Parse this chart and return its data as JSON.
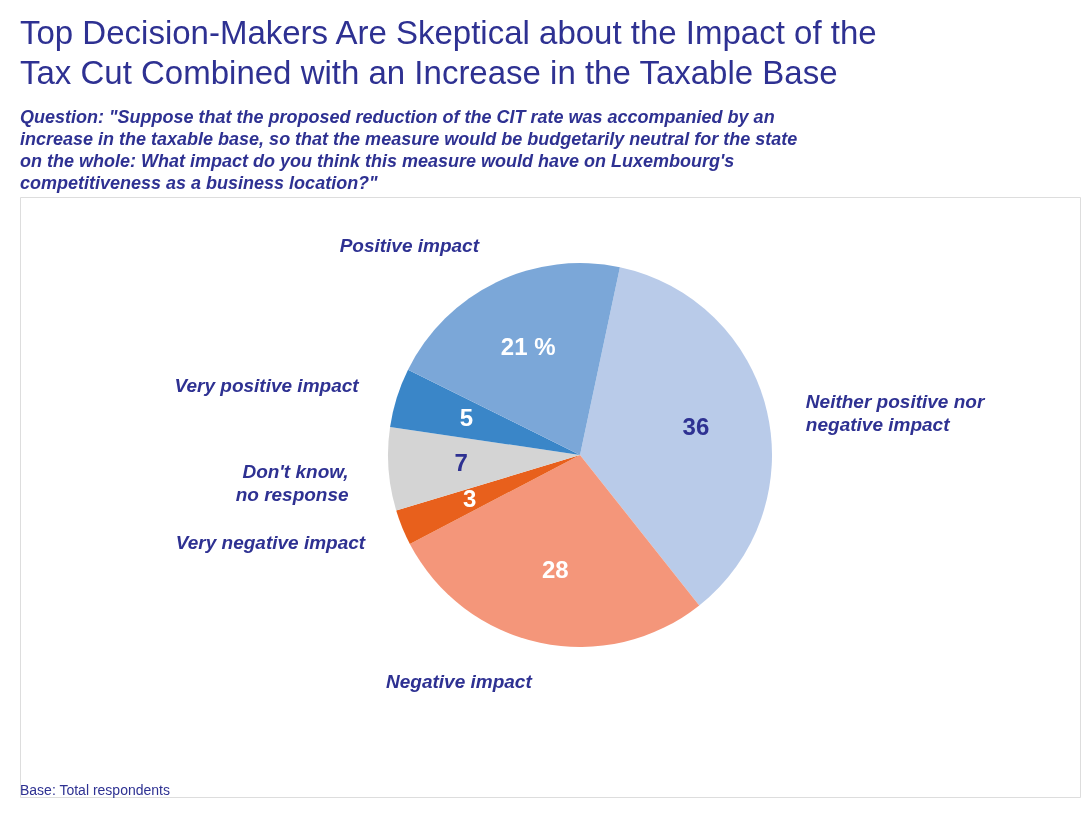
{
  "chart_data": {
    "type": "pie",
    "title": "Top Decision-Makers Are Skeptical about the Impact of the Tax Cut Combined with an Increase in the Taxable Base",
    "subtitle": "Question: \"Suppose that the proposed reduction of the CIT rate was accompanied by an increase in the taxable base, so that the measure would be budgetarily neutral for the state on the whole: What impact do you think this measure would have on Luxembourg's competitiveness as a business location?\"",
    "categories": [
      "Neither positive nor negative impact",
      "Negative impact",
      "Very negative impact",
      "Don't know, no response",
      "Very positive impact",
      "Positive impact"
    ],
    "values": [
      36,
      28,
      3,
      7,
      5,
      21
    ],
    "value_labels": [
      "36",
      "28",
      "3",
      "7",
      "5",
      "21 %"
    ],
    "colors": [
      "#b9cbe9",
      "#f4967a",
      "#e8601c",
      "#d4d4d4",
      "#3a86c8",
      "#7ba7d8"
    ],
    "annotations": [
      "Base: Total respondents"
    ]
  }
}
